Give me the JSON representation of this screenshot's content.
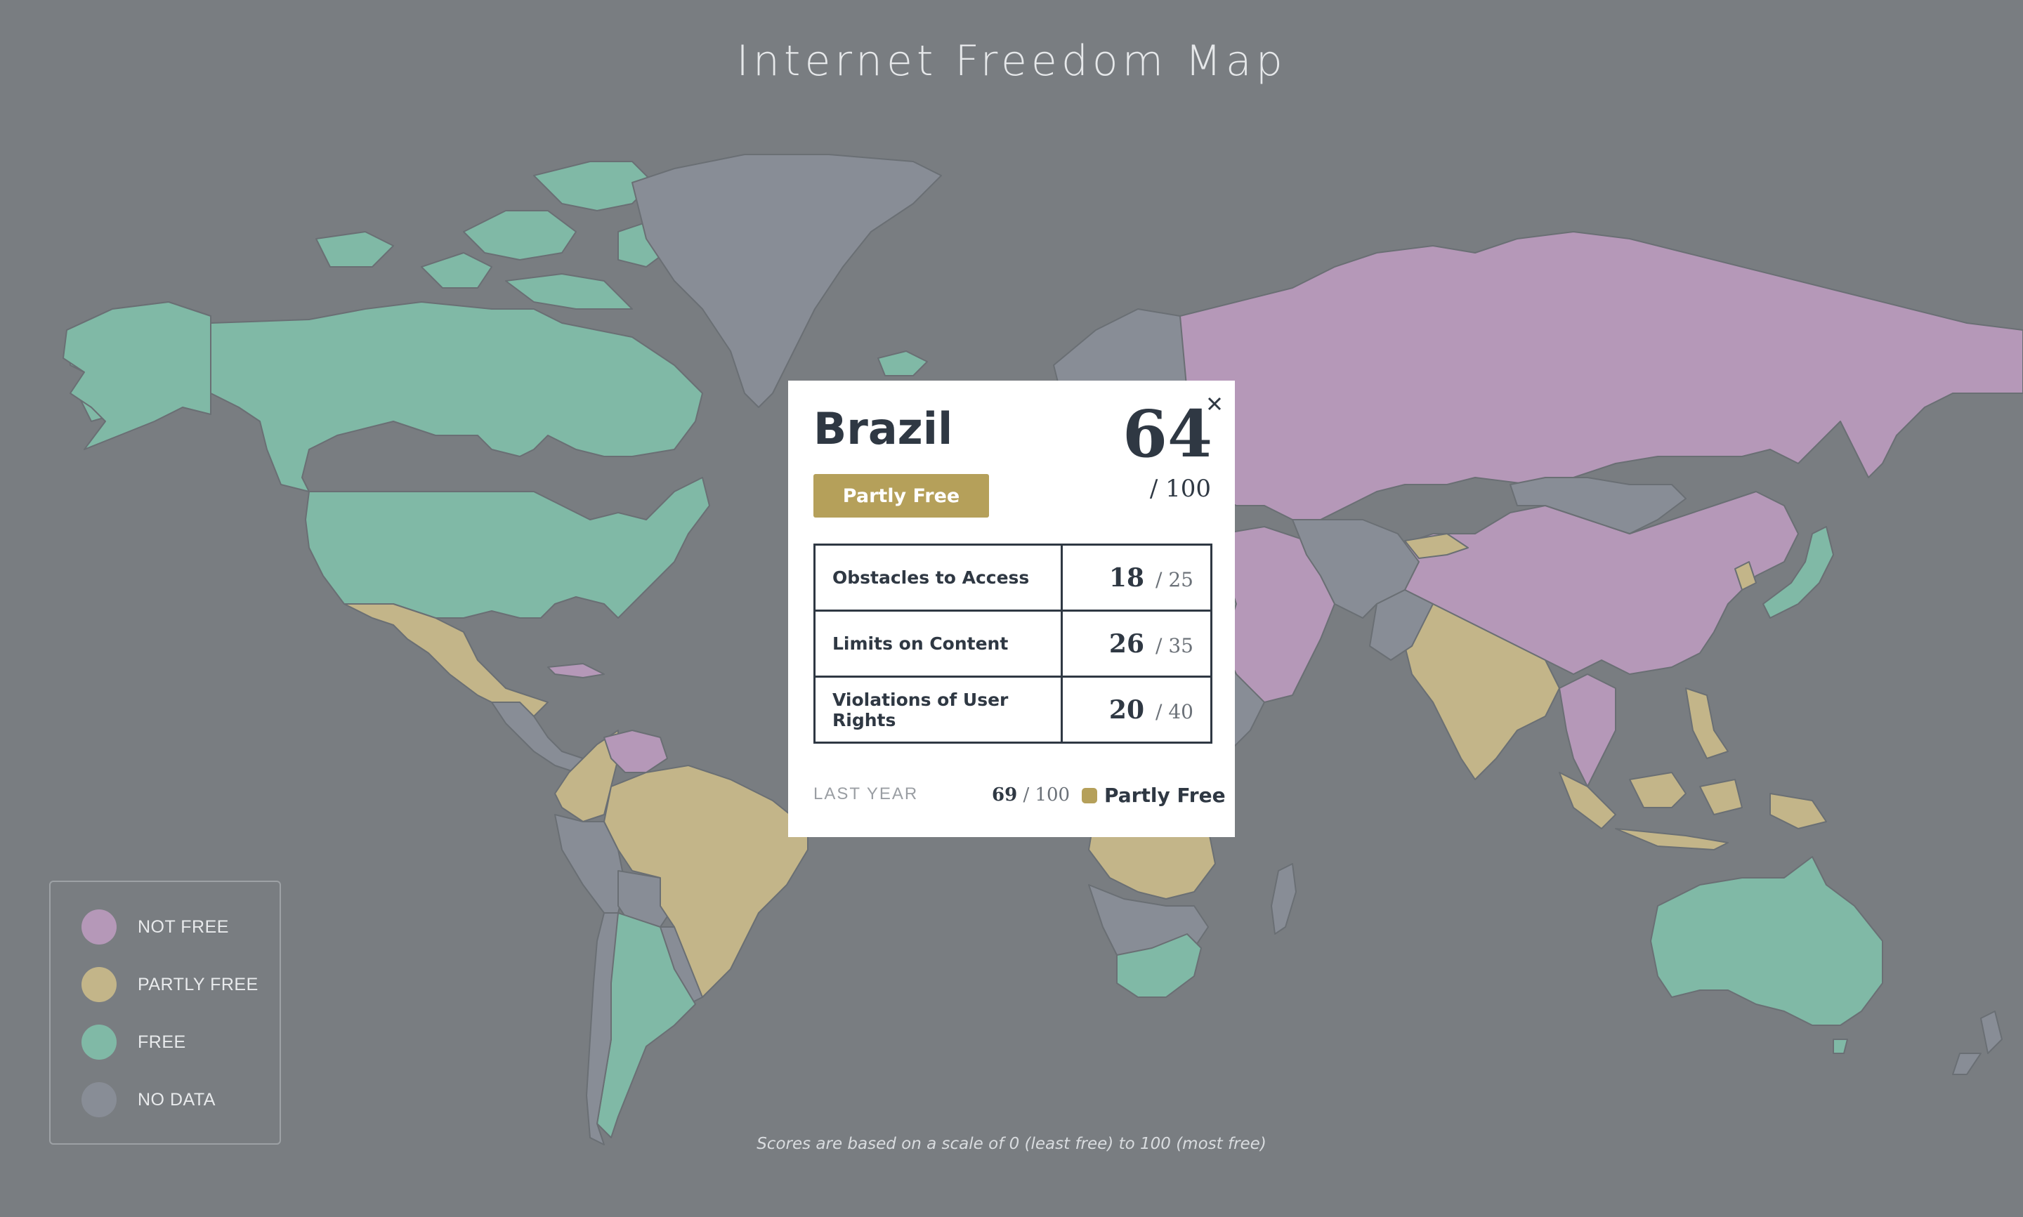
{
  "title": "Internet Freedom Map",
  "colors": {
    "background": "#797d81",
    "not_free": "#b598b8",
    "partly_free": "#c3b589",
    "free": "#80b9a6",
    "no_data": "#888d96",
    "badge": "#b5a05a"
  },
  "legend": [
    {
      "label": "NOT FREE",
      "color": "#b598b8"
    },
    {
      "label": "PARTLY FREE",
      "color": "#c3b589"
    },
    {
      "label": "FREE",
      "color": "#80b9a6"
    },
    {
      "label": "NO DATA",
      "color": "#888d96"
    }
  ],
  "popup": {
    "country": "Brazil",
    "status": "Partly Free",
    "score": "64",
    "score_max": "/ 100",
    "close_icon": "close-icon",
    "categories": [
      {
        "label": "Obstacles to Access",
        "score": "18",
        "max": "/ 25"
      },
      {
        "label": "Limits on Content",
        "score": "26",
        "max": "/ 35"
      },
      {
        "label": "Violations of User Rights",
        "score": "20",
        "max": "/ 40"
      }
    ],
    "last_year": {
      "label": "LAST YEAR",
      "score": "69",
      "max": " / 100",
      "status": "Partly Free"
    }
  },
  "footnote": "Scores are based on a scale of 0 (least free) to 100 (most free)"
}
